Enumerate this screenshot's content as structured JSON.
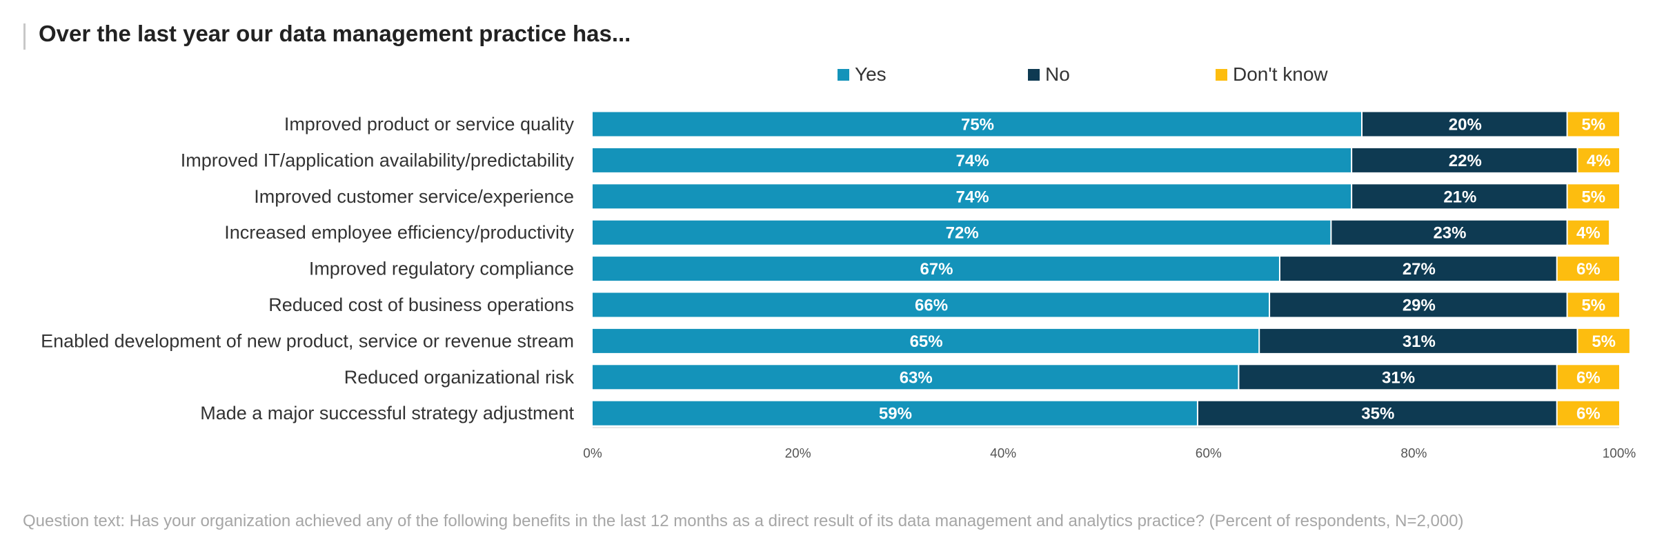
{
  "title": "Over the last year our data management practice has...",
  "footnote": "Question text: Has your organization achieved any of the following benefits in the last 12 months as a direct result of its data management and analytics practice? (Percent of respondents, N=2,000)",
  "colors": {
    "yes": "#1493ba",
    "no": "#0e3a52",
    "dont_know": "#fdbd0f",
    "label_text": "#ffffff",
    "category_text": "#333333",
    "axis_text": "#555555",
    "axis_line": "#cfcfcf"
  },
  "chart_data": {
    "type": "bar",
    "orientation": "horizontal",
    "stacked": true,
    "categories": [
      "Improved product or service quality",
      "Improved IT/application availability/predictability",
      "Improved customer service/experience",
      "Increased employee efficiency/productivity",
      "Improved regulatory compliance",
      "Reduced cost of business operations",
      "Enabled development of new product, service or revenue stream",
      "Reduced organizational risk",
      "Made a major successful strategy adjustment"
    ],
    "series": [
      {
        "name": "Yes",
        "color": "#1493ba",
        "values": [
          75,
          74,
          74,
          72,
          67,
          66,
          65,
          63,
          59
        ]
      },
      {
        "name": "No",
        "color": "#0e3a52",
        "values": [
          20,
          22,
          21,
          23,
          27,
          29,
          31,
          31,
          35
        ]
      },
      {
        "name": "Don't know",
        "color": "#fdbd0f",
        "values": [
          5,
          4,
          5,
          4,
          6,
          5,
          5,
          6,
          6
        ]
      }
    ],
    "data_labels": [
      [
        "75%",
        "74%",
        "74%",
        "72%",
        "67%",
        "66%",
        "65%",
        "63%",
        "59%"
      ],
      [
        "20%",
        "22%",
        "21%",
        "23%",
        "27%",
        "29%",
        "31%",
        "31%",
        "35%"
      ],
      [
        "5%",
        "4%",
        "5%",
        "4%",
        "6%",
        "5%",
        "5%",
        "6%",
        "6%"
      ]
    ],
    "xlim": [
      0,
      100
    ],
    "x_ticks": [
      0,
      20,
      40,
      60,
      80,
      100
    ],
    "x_tick_labels": [
      "0%",
      "20%",
      "40%",
      "60%",
      "80%",
      "100%"
    ],
    "legend_position": "top-center",
    "grid": false
  }
}
